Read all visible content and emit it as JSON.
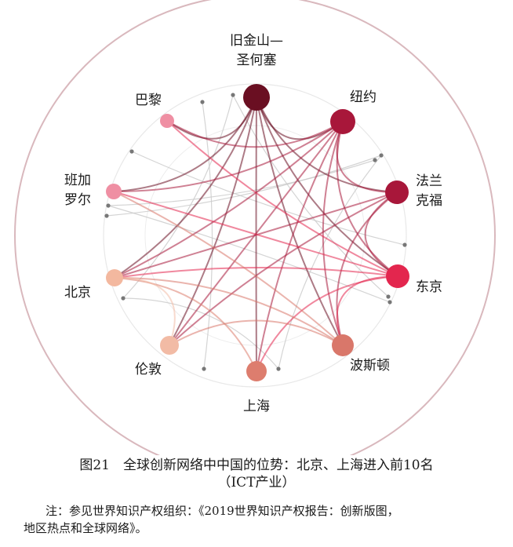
{
  "figure": {
    "nodes": [
      {
        "id": "sf",
        "lines": [
          "旧金山—",
          "圣何塞"
        ],
        "color": "#6a0f22"
      },
      {
        "id": "ny",
        "lines": [
          "纽约"
        ],
        "color": "#a8173a"
      },
      {
        "id": "ff",
        "lines": [
          "法兰",
          "克福"
        ],
        "color": "#a8173a"
      },
      {
        "id": "tokyo",
        "lines": [
          "东京"
        ],
        "color": "#e3264e"
      },
      {
        "id": "boston",
        "lines": [
          "波斯顿"
        ],
        "color": "#d9776a"
      },
      {
        "id": "sh",
        "lines": [
          "上海"
        ],
        "color": "#dd7d6e"
      },
      {
        "id": "london",
        "lines": [
          "伦敦"
        ],
        "color": "#f2bba5"
      },
      {
        "id": "bj",
        "lines": [
          "北京"
        ],
        "color": "#f3b89f"
      },
      {
        "id": "blr",
        "lines": [
          "班加",
          "罗尔"
        ],
        "color": "#ef8fa3"
      },
      {
        "id": "paris",
        "lines": [
          "巴黎"
        ],
        "color": "#ef8fa3"
      }
    ],
    "edges": [
      [
        "sf",
        "ny"
      ],
      [
        "sf",
        "ff"
      ],
      [
        "sf",
        "tokyo"
      ],
      [
        "sf",
        "boston"
      ],
      [
        "sf",
        "sh"
      ],
      [
        "sf",
        "london"
      ],
      [
        "sf",
        "bj"
      ],
      [
        "sf",
        "blr"
      ],
      [
        "sf",
        "paris"
      ],
      [
        "ny",
        "ff"
      ],
      [
        "ny",
        "tokyo"
      ],
      [
        "ny",
        "boston"
      ],
      [
        "ny",
        "sh"
      ],
      [
        "ny",
        "london"
      ],
      [
        "ny",
        "bj"
      ],
      [
        "ny",
        "blr"
      ],
      [
        "ny",
        "paris"
      ],
      [
        "ff",
        "tokyo"
      ],
      [
        "ff",
        "boston"
      ],
      [
        "ff",
        "london"
      ],
      [
        "ff",
        "bj"
      ],
      [
        "tokyo",
        "boston"
      ],
      [
        "tokyo",
        "sh"
      ],
      [
        "tokyo",
        "bj"
      ],
      [
        "tokyo",
        "blr"
      ],
      [
        "tokyo",
        "paris"
      ],
      [
        "boston",
        "bj"
      ],
      [
        "boston",
        "london"
      ],
      [
        "boston",
        "blr"
      ],
      [
        "sh",
        "bj"
      ],
      [
        "london",
        "bj"
      ]
    ]
  },
  "caption": {
    "line1": "图21　全球创新网络中中国的位势：北京、上海进入前10名",
    "line2": "（ICT产业）"
  },
  "note": {
    "line1": "注：参见世界知识产权组织：《2019世界知识产权报告：创新版图，",
    "line2": "地区热点和全球网络》。"
  }
}
